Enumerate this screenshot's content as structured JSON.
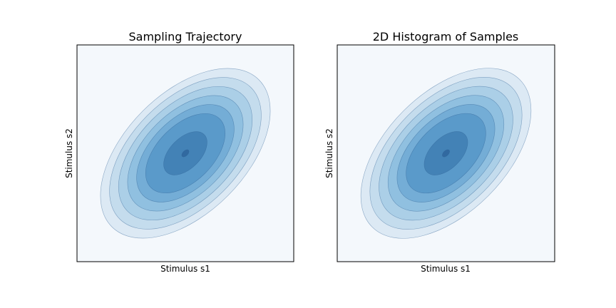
{
  "chart_data": [
    {
      "type": "contour",
      "title": "Sampling Trajectory",
      "xlabel": "Stimulus s1",
      "ylabel": "Stimulus s2",
      "x_ticks_visible": false,
      "y_ticks_visible": false,
      "grid": false,
      "legend": "none",
      "colormap": "Blues",
      "distribution": {
        "kind": "bivariate-gaussian",
        "mean": [
          0,
          0
        ],
        "std": [
          1,
          1
        ],
        "correlation": 0.5
      },
      "xlim": [
        -3,
        3
      ],
      "ylim": [
        -3,
        3
      ],
      "contour_levels": [
        0.25,
        0.5,
        0.75,
        1.0,
        1.25,
        1.5,
        2.0,
        2.5
      ],
      "level_colors": [
        "#bfd8ec",
        "#a7cce4",
        "#8dbfdf",
        "#6fadd6",
        "#5297c9",
        "#3b82bd",
        "#27659e",
        "#1d4c86"
      ],
      "background_color": "#f4f8fc",
      "line_color": "#2e5f93"
    },
    {
      "type": "contour",
      "title": "2D Histogram of Samples",
      "xlabel": "Stimulus s1",
      "ylabel": "Stimulus s2",
      "x_ticks_visible": false,
      "y_ticks_visible": false,
      "grid": false,
      "legend": "none",
      "colormap": "Blues",
      "distribution": {
        "kind": "bivariate-gaussian",
        "mean": [
          0,
          0
        ],
        "std": [
          1,
          1
        ],
        "correlation": 0.5
      },
      "xlim": [
        -3,
        3
      ],
      "ylim": [
        -3,
        3
      ],
      "contour_levels": [
        0.25,
        0.5,
        0.75,
        1.0,
        1.25,
        1.5,
        2.0,
        2.5
      ],
      "level_colors": [
        "#bfd8ec",
        "#a7cce4",
        "#8dbfdf",
        "#6fadd6",
        "#5297c9",
        "#3b82bd",
        "#27659e",
        "#1d4c86"
      ],
      "background_color": "#f4f8fc",
      "line_color": "#2e5f93"
    }
  ]
}
